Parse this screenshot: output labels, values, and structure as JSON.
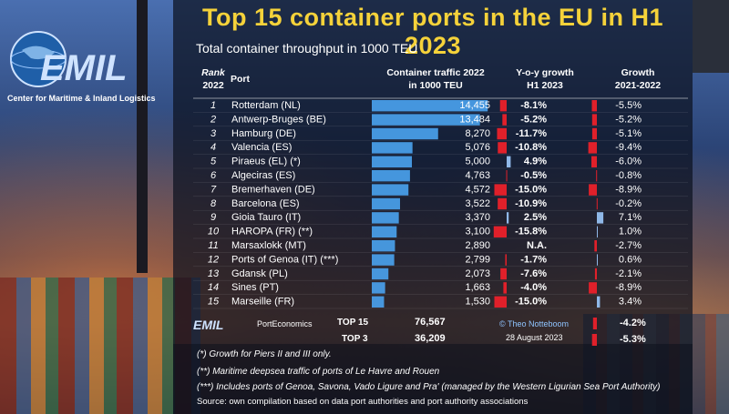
{
  "title": "Top 15 container ports in the EU in H1 2023",
  "subtitle": "Total container throughput in 1000 TEU",
  "logo": {
    "name": "EMIL",
    "tagline": "Center for Maritime & Inland Logistics"
  },
  "headers": {
    "rank": [
      "Rank",
      "2022"
    ],
    "port": "Port",
    "traffic": [
      "Container traffic 2022",
      "in 1000 TEU"
    ],
    "yoy": [
      "Y-o-y growth",
      "H1 2023"
    ],
    "growth": [
      "Growth",
      "2021-2022"
    ]
  },
  "chart_data": {
    "type": "table",
    "columns": [
      "Rank 2022",
      "Port",
      "Container traffic 2022 in 1000 TEU",
      "Y-o-y growth H1 2023",
      "Growth 2021-2022"
    ],
    "rows": [
      {
        "rank": "1",
        "port": "Rotterdam (NL)",
        "traffic": 14455,
        "traffic_label": "14,455",
        "yoy": -8.1,
        "yoy_label": "-8.1%",
        "growth": -5.5,
        "growth_label": "-5.5%"
      },
      {
        "rank": "2",
        "port": "Antwerp-Bruges (BE)",
        "traffic": 13484,
        "traffic_label": "13,484",
        "yoy": -5.2,
        "yoy_label": "-5.2%",
        "growth": -5.2,
        "growth_label": "-5.2%"
      },
      {
        "rank": "3",
        "port": "Hamburg (DE)",
        "traffic": 8270,
        "traffic_label": "8,270",
        "yoy": -11.7,
        "yoy_label": "-11.7%",
        "growth": -5.1,
        "growth_label": "-5.1%"
      },
      {
        "rank": "4",
        "port": "Valencia (ES)",
        "traffic": 5076,
        "traffic_label": "5,076",
        "yoy": -10.8,
        "yoy_label": "-10.8%",
        "growth": -9.4,
        "growth_label": "-9.4%"
      },
      {
        "rank": "5",
        "port": "Piraeus (EL) (*)",
        "traffic": 5000,
        "traffic_label": "5,000",
        "yoy": 4.9,
        "yoy_label": "4.9%",
        "growth": -6.0,
        "growth_label": "-6.0%"
      },
      {
        "rank": "6",
        "port": "Algeciras (ES)",
        "traffic": 4763,
        "traffic_label": "4,763",
        "yoy": -0.5,
        "yoy_label": "-0.5%",
        "growth": -0.8,
        "growth_label": "-0.8%"
      },
      {
        "rank": "7",
        "port": "Bremerhaven (DE)",
        "traffic": 4572,
        "traffic_label": "4,572",
        "yoy": -15.0,
        "yoy_label": "-15.0%",
        "growth": -8.9,
        "growth_label": "-8.9%"
      },
      {
        "rank": "8",
        "port": "Barcelona (ES)",
        "traffic": 3522,
        "traffic_label": "3,522",
        "yoy": -10.9,
        "yoy_label": "-10.9%",
        "growth": -0.2,
        "growth_label": "-0.2%"
      },
      {
        "rank": "9",
        "port": "Gioia Tauro (IT)",
        "traffic": 3370,
        "traffic_label": "3,370",
        "yoy": 2.5,
        "yoy_label": "2.5%",
        "growth": 7.1,
        "growth_label": "7.1%"
      },
      {
        "rank": "10",
        "port": "HAROPA (FR) (**)",
        "traffic": 3100,
        "traffic_label": "3,100",
        "yoy": -15.8,
        "yoy_label": "-15.8%",
        "growth": 1.0,
        "growth_label": "1.0%"
      },
      {
        "rank": "11",
        "port": "Marsaxlokk (MT)",
        "traffic": 2890,
        "traffic_label": "2,890",
        "yoy": null,
        "yoy_label": "N.A.",
        "growth": -2.7,
        "growth_label": "-2.7%"
      },
      {
        "rank": "12",
        "port": "Ports of Genoa (IT) (***)",
        "traffic": 2799,
        "traffic_label": "2,799",
        "yoy": -1.7,
        "yoy_label": "-1.7%",
        "growth": 0.6,
        "growth_label": "0.6%"
      },
      {
        "rank": "13",
        "port": "Gdansk (PL)",
        "traffic": 2073,
        "traffic_label": "2,073",
        "yoy": -7.6,
        "yoy_label": "-7.6%",
        "growth": -2.1,
        "growth_label": "-2.1%"
      },
      {
        "rank": "14",
        "port": "Sines (PT)",
        "traffic": 1663,
        "traffic_label": "1,663",
        "yoy": -4.0,
        "yoy_label": "-4.0%",
        "growth": -8.9,
        "growth_label": "-8.9%"
      },
      {
        "rank": "15",
        "port": "Marseille (FR)",
        "traffic": 1530,
        "traffic_label": "1,530",
        "yoy": -15.0,
        "yoy_label": "-15.0%",
        "growth": 3.4,
        "growth_label": "3.4%"
      }
    ],
    "totals": [
      {
        "label": "TOP 15",
        "traffic_label": "76,567",
        "growth": -4.2,
        "growth_label": "-4.2%"
      },
      {
        "label": "TOP 3",
        "traffic_label": "36,209",
        "growth": -5.3,
        "growth_label": "-5.3%"
      }
    ],
    "traffic_max": 15000,
    "yoy_range": [
      -16,
      6
    ],
    "growth_range": [
      -10,
      8
    ],
    "colors": {
      "traffic_bar": "#4aa3f0",
      "negative": "#e0202a",
      "positive": "#8fb8e8"
    }
  },
  "credit": "© Theo Notteboom",
  "date": "28 August 2023",
  "porteconomics": "PortEconomics",
  "emil_small": "EMIL",
  "notes": [
    "(*) Growth for Piers II and III only.",
    "(**) Maritime deepsea traffic of ports of Le Havre and Rouen",
    "(***) Includes ports of Genoa, Savona, Vado Ligure and Pra' (managed by the Western Ligurian Sea Port Authority)"
  ],
  "source": "Source: own compilation based on data port authorities and port authority associations"
}
